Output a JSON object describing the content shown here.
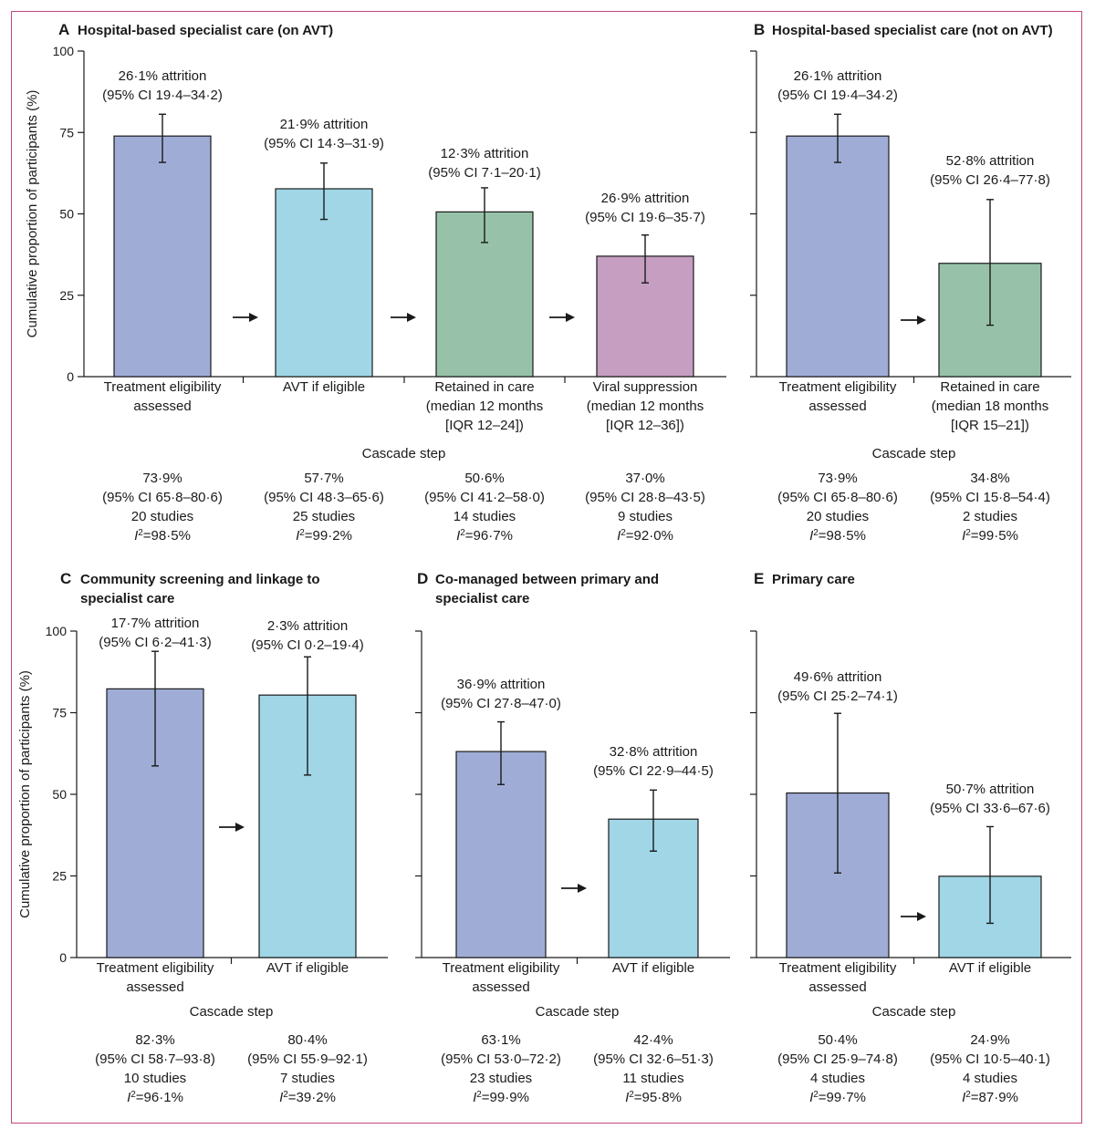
{
  "y_axis_label": "Cumulative proportion of participants (%)",
  "x_axis_label": "Cascade step",
  "colors": {
    "treatment_eligibility": "#9fadd6",
    "avt": "#a0d6e6",
    "retained": "#97c2a9",
    "viral_suppression": "#c69ec2",
    "border": "#c0497e"
  },
  "chart_data": [
    {
      "id": "A",
      "type": "bar",
      "title": "Hospital-based specialist care (on AVT)",
      "xlabel": "Cascade step",
      "ylabel": "Cumulative proportion of participants (%)",
      "ylim": [
        0,
        100
      ],
      "yticks": [
        0,
        25,
        50,
        75,
        100
      ],
      "categories": [
        "Treatment eligibility assessed",
        "AVT if eligible",
        "Retained in care (median 12 months [IQR 12–24])",
        "Viral suppression (median 12 months [IQR 12–36])"
      ],
      "bars": [
        {
          "category_lines": [
            "Treatment eligibility",
            "assessed"
          ],
          "value": 73.9,
          "ci": [
            65.8,
            80.6
          ],
          "color": "#9fadd6",
          "attrition": "26·1% attrition",
          "attrition_ci": "(95% CI 19·4–34·2)",
          "stat_value": "73·9%",
          "stat_ci": "(95% CI 65·8–80·6)",
          "studies": "20 studies",
          "i2": "98·5%"
        },
        {
          "category_lines": [
            "AVT if eligible"
          ],
          "value": 57.7,
          "ci": [
            48.3,
            65.6
          ],
          "color": "#a0d6e6",
          "attrition": "21·9% attrition",
          "attrition_ci": "(95% CI 14·3–31·9)",
          "stat_value": "57·7%",
          "stat_ci": "(95% CI 48·3–65·6)",
          "studies": "25 studies",
          "i2": "99·2%"
        },
        {
          "category_lines": [
            "Retained in care",
            "(median 12 months",
            "[IQR 12–24])"
          ],
          "value": 50.6,
          "ci": [
            41.2,
            58.0
          ],
          "color": "#97c2a9",
          "attrition": "12·3% attrition",
          "attrition_ci": "(95% CI 7·1–20·1)",
          "stat_value": "50·6%",
          "stat_ci": "(95% CI 41·2–58·0)",
          "studies": "14 studies",
          "i2": "96·7%"
        },
        {
          "category_lines": [
            "Viral suppression",
            "(median 12 months",
            "[IQR 12–36])"
          ],
          "value": 37.0,
          "ci": [
            28.8,
            43.5
          ],
          "color": "#c69ec2",
          "attrition": "26·9% attrition",
          "attrition_ci": "(95% CI 19·6–35·7)",
          "stat_value": "37·0%",
          "stat_ci": "(95% CI 28·8–43·5)",
          "studies": "9 studies",
          "i2": "92·0%"
        }
      ]
    },
    {
      "id": "B",
      "type": "bar",
      "title": "Hospital-based specialist care (not on AVT)",
      "xlabel": "Cascade step",
      "ylim": [
        0,
        100
      ],
      "yticks": [
        0,
        25,
        50,
        75,
        100
      ],
      "categories": [
        "Treatment eligibility assessed",
        "Retained in care (median 18 months [IQR 15–21])"
      ],
      "bars": [
        {
          "category_lines": [
            "Treatment eligibility",
            "assessed"
          ],
          "value": 73.9,
          "ci": [
            65.8,
            80.6
          ],
          "color": "#9fadd6",
          "attrition": "26·1% attrition",
          "attrition_ci": "(95% CI 19·4–34·2)",
          "stat_value": "73·9%",
          "stat_ci": "(95% CI 65·8–80·6)",
          "studies": "20 studies",
          "i2": "98·5%"
        },
        {
          "category_lines": [
            "Retained in care",
            "(median 18 months",
            "[IQR 15–21])"
          ],
          "value": 34.8,
          "ci": [
            15.8,
            54.4
          ],
          "color": "#97c2a9",
          "attrition": "52·8% attrition",
          "attrition_ci": "(95% CI 26·4–77·8)",
          "stat_value": "34·8%",
          "stat_ci": "(95% CI 15·8–54·4)",
          "studies": "2 studies",
          "i2": "99·5%"
        }
      ]
    },
    {
      "id": "C",
      "type": "bar",
      "title": "Community screening and linkage to specialist care",
      "title_lines": [
        "Community screening and linkage to",
        "specialist care"
      ],
      "xlabel": "Cascade step",
      "ylabel": "Cumulative proportion of participants (%)",
      "ylim": [
        0,
        100
      ],
      "yticks": [
        0,
        25,
        50,
        75,
        100
      ],
      "categories": [
        "Treatment eligibility assessed",
        "AVT if eligible"
      ],
      "bars": [
        {
          "category_lines": [
            "Treatment eligibility",
            "assessed"
          ],
          "value": 82.3,
          "ci": [
            58.7,
            93.8
          ],
          "color": "#9fadd6",
          "attrition": "17·7% attrition",
          "attrition_ci": "(95% CI 6·2–41·3)",
          "stat_value": "82·3%",
          "stat_ci": "(95% CI 58·7–93·8)",
          "studies": "10 studies",
          "i2": "96·1%"
        },
        {
          "category_lines": [
            "AVT if eligible"
          ],
          "value": 80.4,
          "ci": [
            55.9,
            92.1
          ],
          "color": "#a0d6e6",
          "attrition": "2·3% attrition",
          "attrition_ci": "(95% CI 0·2–19·4)",
          "stat_value": "80·4%",
          "stat_ci": "(95% CI 55·9–92·1)",
          "studies": "7 studies",
          "i2": "39·2%"
        }
      ]
    },
    {
      "id": "D",
      "type": "bar",
      "title": "Co-managed between primary and specialist care",
      "title_lines": [
        "Co-managed between primary and",
        "specialist care"
      ],
      "xlabel": "Cascade step",
      "ylim": [
        0,
        100
      ],
      "yticks": [
        0,
        25,
        50,
        75,
        100
      ],
      "categories": [
        "Treatment eligibility assessed",
        "AVT if eligible"
      ],
      "bars": [
        {
          "category_lines": [
            "Treatment eligibility",
            "assessed"
          ],
          "value": 63.1,
          "ci": [
            53.0,
            72.2
          ],
          "color": "#9fadd6",
          "attrition": "36·9% attrition",
          "attrition_ci": "(95% CI 27·8–47·0)",
          "stat_value": "63·1%",
          "stat_ci": "(95% CI 53·0–72·2)",
          "studies": "23 studies",
          "i2": "99·9%"
        },
        {
          "category_lines": [
            "AVT if eligible"
          ],
          "value": 42.4,
          "ci": [
            32.6,
            51.3
          ],
          "color": "#a0d6e6",
          "attrition": "32·8% attrition",
          "attrition_ci": "(95% CI 22·9–44·5)",
          "stat_value": "42·4%",
          "stat_ci": "(95% CI 32·6–51·3)",
          "studies": "11 studies",
          "i2": "95·8%"
        }
      ]
    },
    {
      "id": "E",
      "type": "bar",
      "title": "Primary care",
      "xlabel": "Cascade step",
      "ylim": [
        0,
        100
      ],
      "yticks": [
        0,
        25,
        50,
        75,
        100
      ],
      "categories": [
        "Treatment eligibility assessed",
        "AVT if eligible"
      ],
      "bars": [
        {
          "category_lines": [
            "Treatment eligibility",
            "assessed"
          ],
          "value": 50.4,
          "ci": [
            25.9,
            74.8
          ],
          "color": "#9fadd6",
          "attrition": "49·6% attrition",
          "attrition_ci": "(95% CI 25·2–74·1)",
          "stat_value": "50·4%",
          "stat_ci": "(95% CI 25·9–74·8)",
          "studies": "4 studies",
          "i2": "99·7%"
        },
        {
          "category_lines": [
            "AVT if eligible"
          ],
          "value": 24.9,
          "ci": [
            10.5,
            40.1
          ],
          "color": "#a0d6e6",
          "attrition": "50·7% attrition",
          "attrition_ci": "(95% CI 33·6–67·6)",
          "stat_value": "24·9%",
          "stat_ci": "(95% CI 10·5–40·1)",
          "studies": "4 studies",
          "i2": "87·9%"
        }
      ]
    }
  ]
}
